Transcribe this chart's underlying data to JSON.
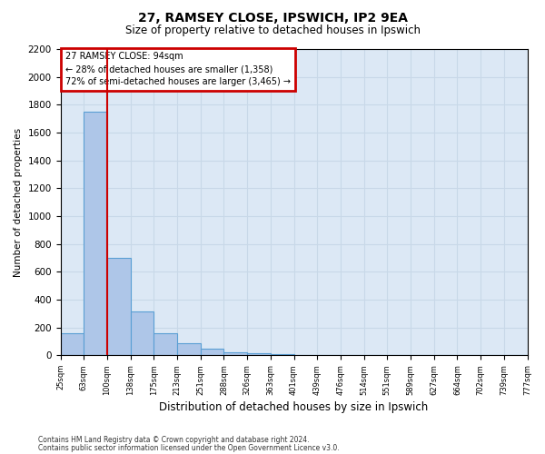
{
  "title1": "27, RAMSEY CLOSE, IPSWICH, IP2 9EA",
  "title2": "Size of property relative to detached houses in Ipswich",
  "xlabel": "Distribution of detached houses by size in Ipswich",
  "ylabel": "Number of detached properties",
  "bin_labels": [
    "25sqm",
    "63sqm",
    "100sqm",
    "138sqm",
    "175sqm",
    "213sqm",
    "251sqm",
    "288sqm",
    "326sqm",
    "363sqm",
    "401sqm",
    "439sqm",
    "476sqm",
    "514sqm",
    "551sqm",
    "589sqm",
    "627sqm",
    "664sqm",
    "702sqm",
    "739sqm",
    "777sqm"
  ],
  "bar_values": [
    160,
    1750,
    700,
    315,
    160,
    85,
    45,
    25,
    15,
    10,
    5,
    0,
    0,
    0,
    0,
    0,
    0,
    0,
    0,
    0
  ],
  "bar_color": "#aec6e8",
  "bar_edge_color": "#5a9fd4",
  "annotation_text": "27 RAMSEY CLOSE: 94sqm\n← 28% of detached houses are smaller (1,358)\n72% of semi-detached houses are larger (3,465) →",
  "annotation_box_color": "#ffffff",
  "annotation_box_edge": "#cc0000",
  "vline_color": "#cc0000",
  "ylim": [
    0,
    2200
  ],
  "yticks": [
    0,
    200,
    400,
    600,
    800,
    1000,
    1200,
    1400,
    1600,
    1800,
    2000,
    2200
  ],
  "grid_color": "#c8d8e8",
  "bg_color": "#dce8f5",
  "footer1": "Contains HM Land Registry data © Crown copyright and database right 2024.",
  "footer2": "Contains public sector information licensed under the Open Government Licence v3.0."
}
